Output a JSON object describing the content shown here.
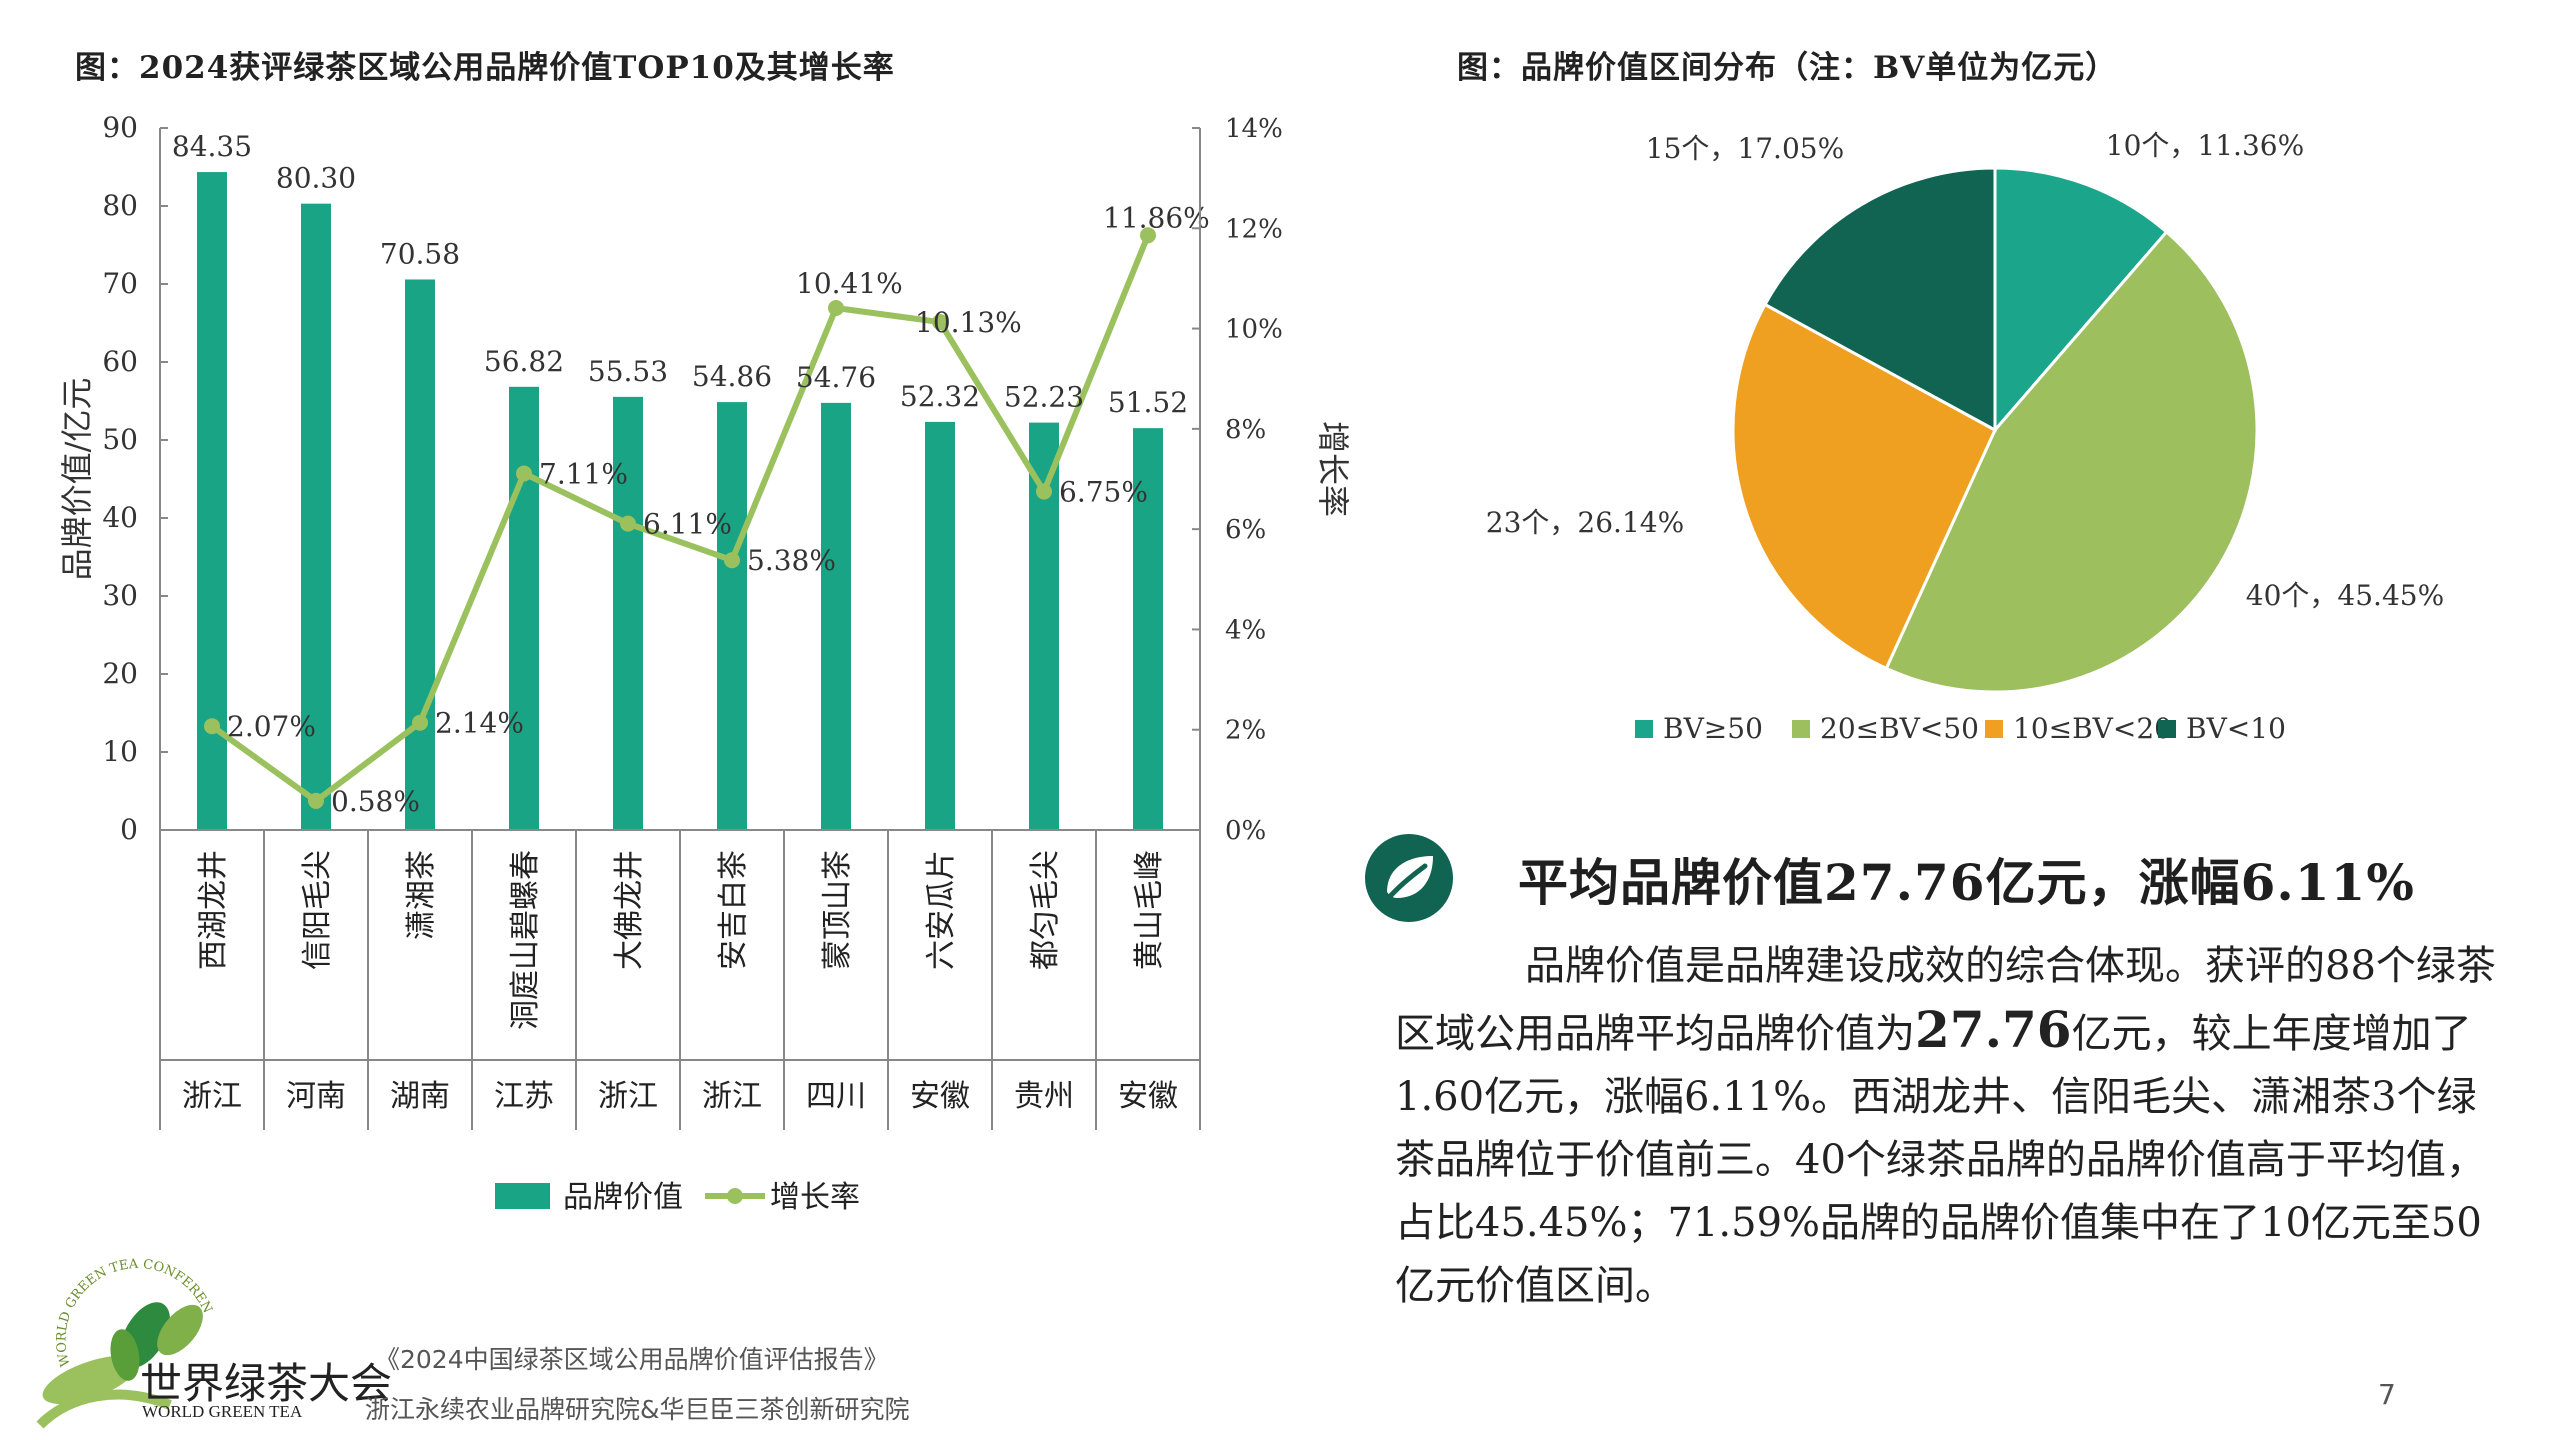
{
  "left_chart_title": "图：2024获评绿茶区域公用品牌价值TOP10及其增长率",
  "right_chart_title": "图：品牌价值区间分布（注：BV单位为亿元）",
  "chart_data": [
    {
      "type": "bar",
      "title": "图：2024获评绿茶区域公用品牌价值TOP10及其增长率",
      "categories": [
        "西湖龙井",
        "信阳毛尖",
        "潇湘茶",
        "洞庭山碧螺春",
        "大佛龙井",
        "安吉白茶",
        "蒙顶山茶",
        "六安瓜片",
        "都匀毛尖",
        "黄山毛峰"
      ],
      "provinces": [
        "浙江",
        "河南",
        "湖南",
        "江苏",
        "浙江",
        "浙江",
        "四川",
        "安徽",
        "贵州",
        "安徽"
      ],
      "series": [
        {
          "name": "品牌价值",
          "type": "bar",
          "axis": "left",
          "color": "#1aa486",
          "values": [
            84.35,
            80.3,
            70.58,
            56.82,
            55.53,
            54.86,
            54.76,
            52.32,
            52.23,
            51.52
          ],
          "labels": [
            "84.35",
            "80.30",
            "70.58",
            "56.82",
            "55.53",
            "54.86",
            "54.76",
            "52.32",
            "52.23",
            "51.52"
          ]
        },
        {
          "name": "增长率",
          "type": "line",
          "axis": "right",
          "color": "#9bc15e",
          "values": [
            2.07,
            0.58,
            2.14,
            7.11,
            6.11,
            5.38,
            10.41,
            10.13,
            6.75,
            11.86
          ],
          "labels": [
            "2.07%",
            "0.58%",
            "2.14%",
            "7.11%",
            "6.11%",
            "5.38%",
            "10.41%",
            "10.13%",
            "6.75%",
            "11.86%"
          ]
        }
      ],
      "ylabel": "品牌价值/亿元",
      "y2label": "增长率",
      "ylim": [
        0,
        90
      ],
      "y2lim": [
        0,
        14
      ],
      "yticks": [
        "0",
        "10",
        "20",
        "30",
        "40",
        "50",
        "60",
        "70",
        "80",
        "90"
      ],
      "y2ticks": [
        "0%",
        "2%",
        "4%",
        "6%",
        "8%",
        "10%",
        "12%",
        "14%"
      ],
      "legend_position": "bottom"
    },
    {
      "type": "pie",
      "title": "图：品牌价值区间分布（注：BV单位为亿元）",
      "slices": [
        {
          "name": "BV≥50",
          "count": 10,
          "percent": 11.36,
          "label": "10个，11.36%",
          "color": "#1ba58b"
        },
        {
          "name": "20≤BV<50",
          "count": 40,
          "percent": 45.45,
          "label": "40个，45.45%",
          "color": "#9dbf5d"
        },
        {
          "name": "10≤BV<20",
          "count": 23,
          "percent": 26.14,
          "label": "23个，26.14%",
          "color": "#f0a020"
        },
        {
          "name": "BV<10",
          "count": 15,
          "percent": 17.05,
          "label": "15个，17.05%",
          "color": "#126452"
        }
      ],
      "legend_position": "bottom"
    }
  ],
  "summary": {
    "heading": "平均品牌价值27.76亿元，涨幅6.11%",
    "para_1": "品牌价值是品牌建设成效的综合体现。获评的88个绿茶区域公用品牌平均品牌价值为",
    "para_big": "27.76",
    "para_2": "亿元，较上年度增加了1.60亿元，涨幅6.11%。西湖龙井、信阳毛尖、潇湘茶3个绿茶品牌位于价值前三。40个绿茶品牌的品牌价值高于平均值，占比45.45%；71.59%品牌的品牌价值集中在了10亿元至50亿元价值区间。"
  },
  "footer": {
    "report_title": "《2024中国绿茶区域公用品牌价值评估报告》",
    "institutes": "浙江永续农业品牌研究院&华巨臣三茶创新研究院",
    "page_number": "7",
    "logo_cn": "世界绿茶大会",
    "logo_en": "WORLD GREEN TEA",
    "logo_arc": "WORLD GREEN TEA CONFERENCE"
  },
  "colors": {
    "accent_green": "#1aa486",
    "line_green": "#9bc15e",
    "dark_green": "#126452",
    "orange": "#f0a020"
  }
}
